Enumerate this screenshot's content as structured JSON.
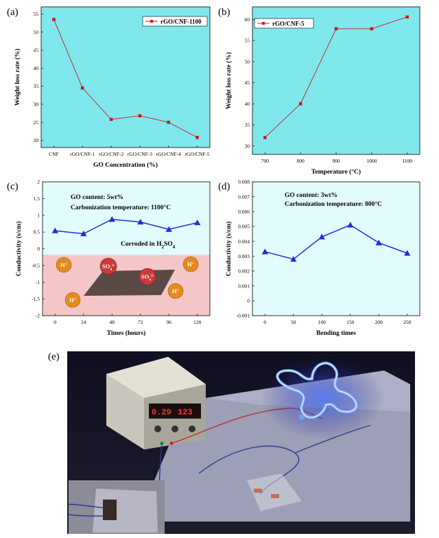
{
  "panels": {
    "a": "(a)",
    "b": "(b)",
    "c": "(c)",
    "d": "(d)",
    "e": "(e)"
  },
  "colors": {
    "plot_bg_ab": "#7fe8ec",
    "plot_bg_cd": "#e2fbfd",
    "series_red": "#cc1818",
    "series_blue": "#1d2fd4",
    "pink_band": "#f5c6c8",
    "ion_orange": "#e58a20",
    "ion_red": "#c83a3a",
    "plate": "#5a4a46"
  },
  "chart_data": [
    {
      "type": "line",
      "panel": "a",
      "categories": [
        "CNF",
        "rGO/CNF-1",
        "rGO/CNF-2",
        "rGO/CNF-3",
        "rGO/CNF-4",
        "rGO/CNF-5"
      ],
      "values": [
        53.5,
        34.5,
        25.8,
        26.8,
        25.0,
        20.8
      ],
      "series_name": "rGO/CNF-1100",
      "xlabel": "GO Concentration (%)",
      "ylabel": "Weight loss rate (%)",
      "ylim": [
        18,
        57
      ],
      "yticks": [
        20,
        25,
        30,
        35,
        40,
        45,
        50,
        55
      ],
      "legend": "top-right",
      "grid": false
    },
    {
      "type": "line",
      "panel": "b",
      "x": [
        700,
        800,
        900,
        1000,
        1100
      ],
      "values": [
        32.0,
        40.0,
        57.8,
        57.8,
        60.6
      ],
      "series_name": "rGO/CNF-5",
      "xlabel": "Temperature (°C)",
      "ylabel": "Weight loss rate (%)",
      "xticks": [
        700,
        800,
        900,
        1000,
        1100
      ],
      "ylim": [
        28,
        63
      ],
      "yticks": [
        30,
        35,
        40,
        45,
        50,
        55,
        60
      ],
      "legend": "top-left",
      "grid": false
    },
    {
      "type": "line",
      "panel": "c",
      "x": [
        0,
        24,
        48,
        72,
        96,
        120
      ],
      "values": [
        0.54,
        0.45,
        0.88,
        0.8,
        0.58,
        0.78
      ],
      "xlabel": "Times (hours)",
      "ylabel": "Conductivity (s/cm)",
      "xticks": [
        0,
        24,
        48,
        72,
        96,
        120
      ],
      "ylim": [
        -2,
        2
      ],
      "yticks": [
        -2,
        -1.5,
        -1,
        -0.5,
        0,
        0.5,
        1,
        1.5,
        2
      ],
      "ytick_labels": [
        "-2",
        "-1.5",
        "-1",
        "-0.5",
        "0",
        "0.5",
        "1",
        "1.5",
        "2"
      ],
      "annotation_line1": "GO content: 5wt%",
      "annotation_line2": "Carbonization temperature:  1100°C",
      "corroded_prefix": "Corroded in H",
      "corroded_sub1": "2",
      "corroded_mid": "SO",
      "corroded_sub2": "4",
      "ion_h": "H",
      "ion_h_sup": "+",
      "ion_so": "SO",
      "ion_so_sub": "4",
      "ion_so_sup": "2-",
      "grid": false
    },
    {
      "type": "line",
      "panel": "d",
      "x": [
        0,
        50,
        100,
        150,
        200,
        250
      ],
      "values": [
        0.0033,
        0.0028,
        0.0043,
        0.0051,
        0.0039,
        0.0032
      ],
      "xlabel": "Bending times",
      "ylabel": "Conductivity (s/cm)",
      "xticks": [
        0,
        50,
        100,
        150,
        200,
        250
      ],
      "ylim": [
        -0.001,
        0.008
      ],
      "yticks": [
        -0.001,
        0,
        0.001,
        0.002,
        0.003,
        0.004,
        0.005,
        0.006,
        0.007,
        0.008
      ],
      "ytick_labels": [
        "-0.001",
        "0",
        "0.001",
        "0.002",
        "0.003",
        "0.004",
        "0.005",
        "0.006",
        "0.007",
        "0.008"
      ],
      "annotation_line1": "GO content: 3wt%",
      "annotation_line2": "Carbonization temperature:  800°C",
      "grid": false
    }
  ],
  "photo": {
    "display_left": "0.29",
    "display_right": "123"
  }
}
